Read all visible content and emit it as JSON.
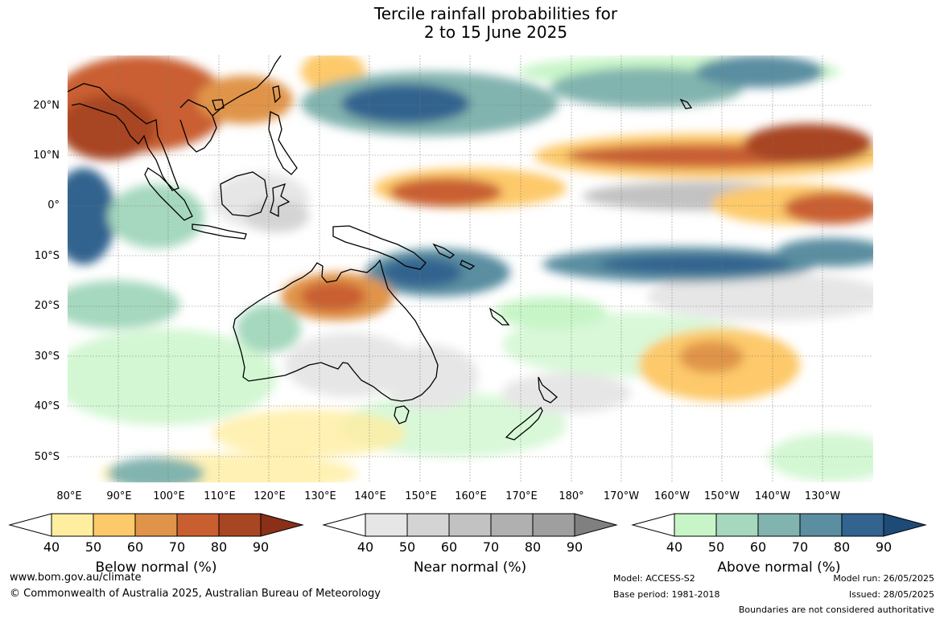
{
  "title": {
    "line1": "Tercile rainfall probabilities for",
    "line2": "2 to 15 June 2025"
  },
  "lat_labels": [
    "20°N",
    "10°N",
    "0°",
    "10°S",
    "20°S",
    "30°S",
    "40°S",
    "50°S"
  ],
  "lon_labels": [
    "80°E",
    "90°E",
    "100°E",
    "110°E",
    "120°E",
    "130°E",
    "140°E",
    "150°E",
    "160°E",
    "170°E",
    "180°",
    "170°W",
    "160°W",
    "150°W",
    "140°W",
    "130°W"
  ],
  "colorbars": [
    {
      "label": "Below normal (%)",
      "ticks": [
        "40",
        "50",
        "60",
        "70",
        "80",
        "90"
      ],
      "colors": [
        "#ffeea0",
        "#fdc96a",
        "#e0944a",
        "#c95f30",
        "#a84523",
        "#8a3018"
      ]
    },
    {
      "label": "Near normal (%)",
      "ticks": [
        "40",
        "50",
        "60",
        "70",
        "80",
        "90"
      ],
      "colors": [
        "#e6e6e6",
        "#d4d4d4",
        "#c2c2c2",
        "#b0b0b0",
        "#9f9f9f",
        "#808080"
      ]
    },
    {
      "label": "Above normal (%)",
      "ticks": [
        "40",
        "50",
        "60",
        "70",
        "80",
        "90"
      ],
      "colors": [
        "#c8f5c8",
        "#a5d8be",
        "#82b4af",
        "#5a8ea0",
        "#33638f",
        "#1e4a78"
      ]
    }
  ],
  "footer": {
    "website": "www.bom.gov.au/climate",
    "copyright": "© Commonwealth of Australia 2025, Australian Bureau of Meteorology",
    "model": "Model: ACCESS-S2",
    "base_period": "Base period: 1981-2018",
    "model_run": "Model run: 26/05/2025",
    "issued": "Issued: 28/05/2025",
    "disclaimer": "Boundaries are not considered authoritative"
  }
}
